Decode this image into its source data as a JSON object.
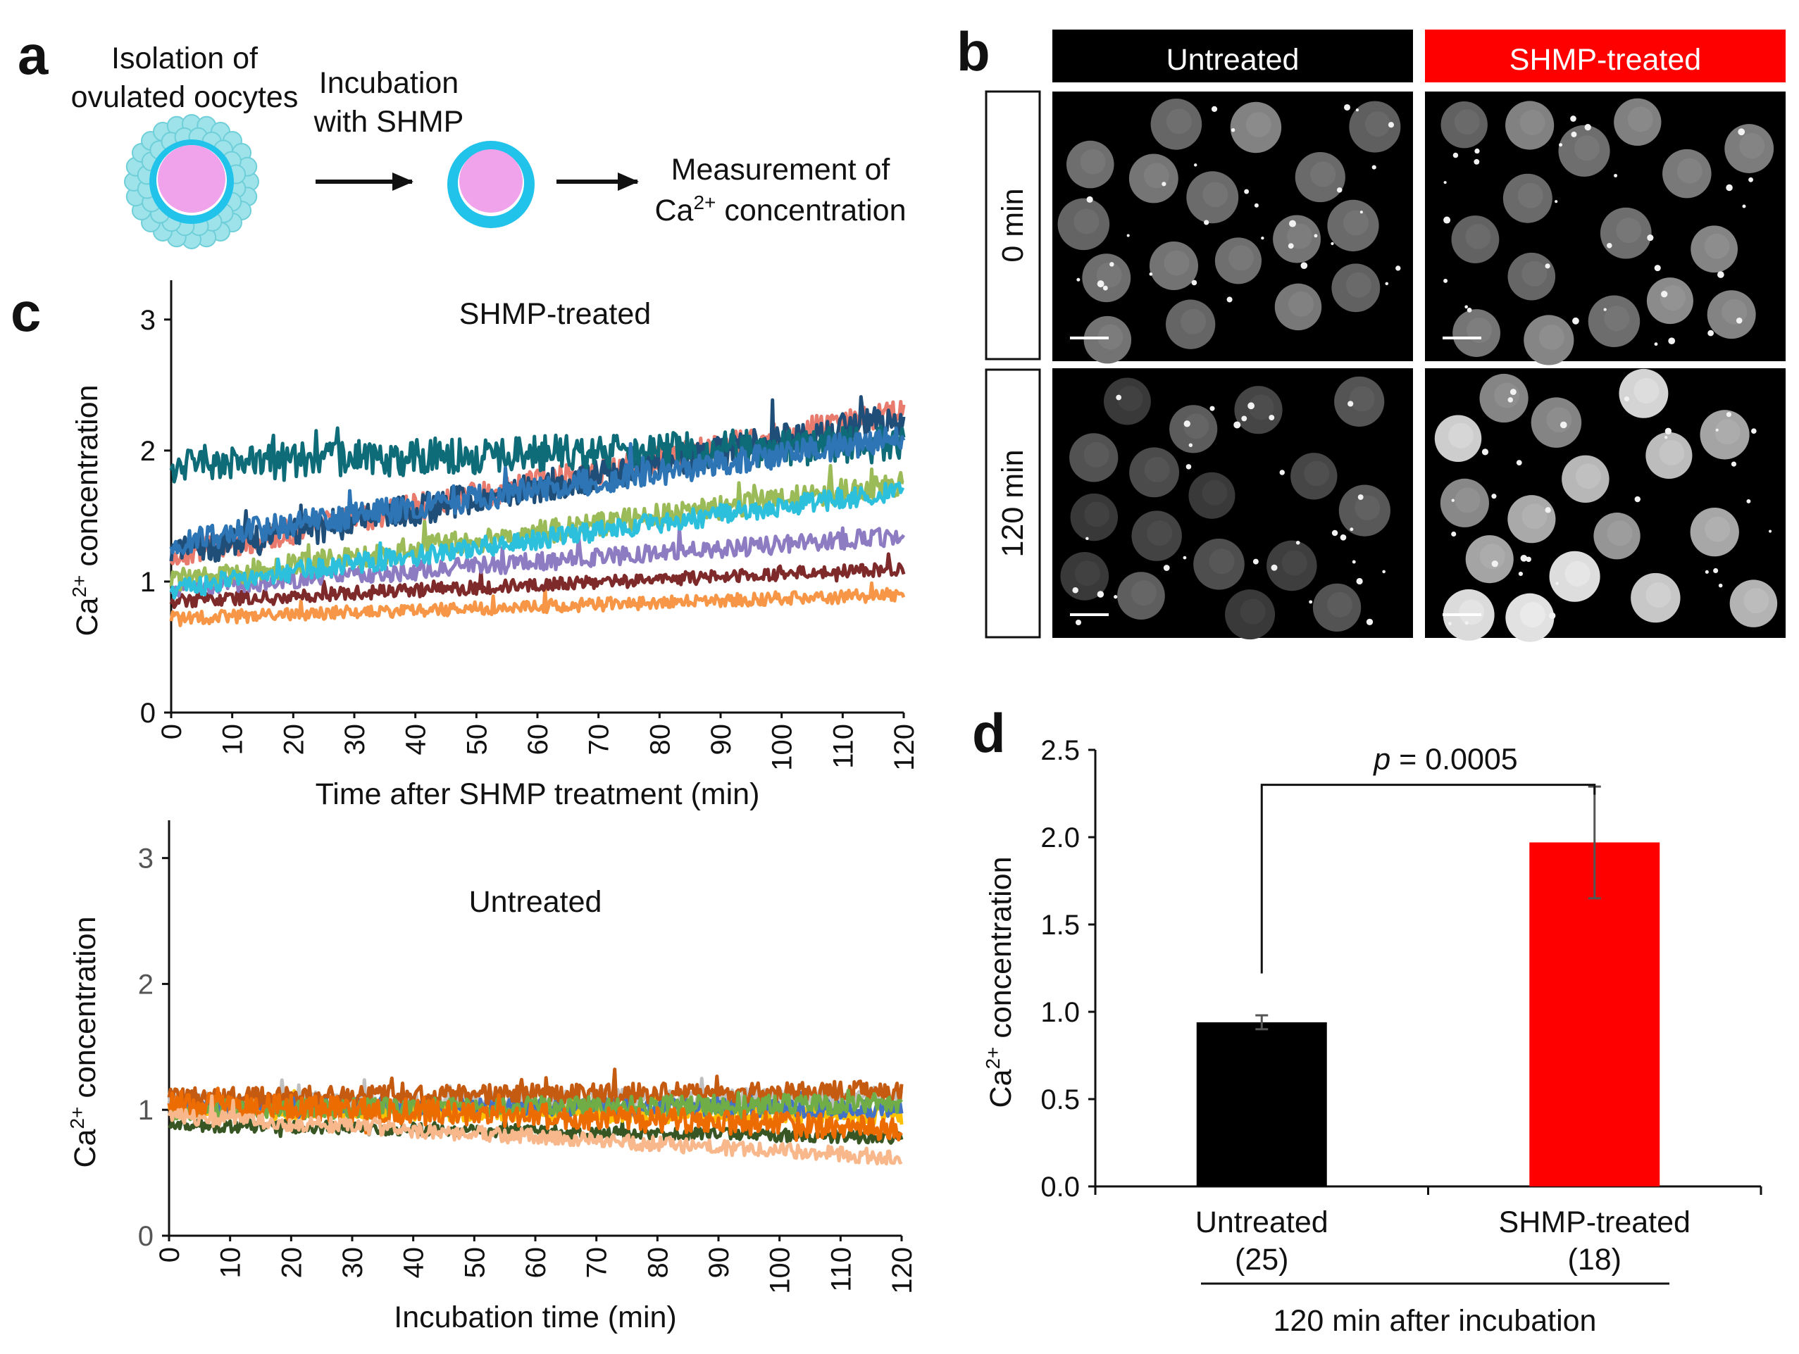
{
  "panel_labels": {
    "a": "a",
    "b": "b",
    "c": "c",
    "d": "d"
  },
  "panel_a": {
    "step1_line1": "Isolation of",
    "step1_line2": "ovulated oocytes",
    "step2_line1": "Incubation",
    "step2_line2": "with SHMP",
    "step3_line1": "Measurement of",
    "step3_line2_prefix": "Ca",
    "step3_line2_sup": "2+",
    "step3_line2_suffix": " concentration",
    "colors": {
      "cumulus": "#9fe3ea",
      "zona": "#22c3ea",
      "oocyte": "#f0a2ea"
    }
  },
  "panel_b": {
    "col_untreated": "Untreated",
    "col_shmp": "SHMP-treated",
    "row_0": "0 min",
    "row_120": "120 min",
    "colors": {
      "untreated_header": "#000000",
      "shmp_header": "#ff0000"
    }
  },
  "chart_data": [
    {
      "id": "c-top",
      "type": "line",
      "title": "SHMP-treated",
      "xlabel": "Time after SHMP treatment (min)",
      "ylabel_prefix": "Ca",
      "ylabel_sup": "2+",
      "ylabel_suffix": " concentration",
      "xlim": [
        0,
        120
      ],
      "ylim": [
        0,
        3.3
      ],
      "xticks": [
        0,
        10,
        20,
        30,
        40,
        50,
        60,
        70,
        80,
        90,
        100,
        110,
        120
      ],
      "yticks": [
        0,
        1,
        2,
        3
      ],
      "series": [
        {
          "name": "trace-1",
          "color": "#f79646",
          "start": 0.72,
          "end": 0.9,
          "noise": 0.05
        },
        {
          "name": "trace-2",
          "color": "#7f2a2a",
          "start": 0.85,
          "end": 1.1,
          "noise": 0.05
        },
        {
          "name": "trace-3",
          "color": "#8e7cc3",
          "start": 0.95,
          "end": 1.35,
          "noise": 0.07
        },
        {
          "name": "trace-4",
          "color": "#9bbb59",
          "start": 1.0,
          "end": 1.75,
          "noise": 0.09
        },
        {
          "name": "trace-5",
          "color": "#2cc0dc",
          "start": 0.95,
          "end": 1.7,
          "noise": 0.08
        },
        {
          "name": "trace-6",
          "color": "#e87b6e",
          "start": 1.2,
          "end": 2.3,
          "noise": 0.1
        },
        {
          "name": "trace-7",
          "color": "#1f4e79",
          "start": 1.2,
          "end": 2.25,
          "noise": 0.12
        },
        {
          "name": "trace-8",
          "color": "#0e6b78",
          "start": 1.9,
          "end": 2.05,
          "noise": 0.14
        },
        {
          "name": "trace-9",
          "color": "#2e75b6",
          "start": 1.3,
          "end": 2.1,
          "noise": 0.1
        }
      ]
    },
    {
      "id": "c-bottom",
      "type": "line",
      "title": "Untreated",
      "xlabel": "Incubation time (min)",
      "ylabel_prefix": "Ca",
      "ylabel_sup": "2+",
      "ylabel_suffix": " concentration",
      "xlim": [
        0,
        120
      ],
      "ylim": [
        0,
        3.3
      ],
      "xticks": [
        0,
        10,
        20,
        30,
        40,
        50,
        60,
        70,
        80,
        90,
        100,
        110,
        120
      ],
      "yticks": [
        0,
        1,
        2,
        3
      ],
      "series": [
        {
          "name": "trace-1",
          "color": "#375623",
          "start": 0.88,
          "end": 0.78,
          "noise": 0.05
        },
        {
          "name": "trace-2",
          "color": "#bfbfbf",
          "start": 1.05,
          "end": 1.1,
          "noise": 0.08
        },
        {
          "name": "trace-3",
          "color": "#ffc000",
          "start": 1.0,
          "end": 0.95,
          "noise": 0.07
        },
        {
          "name": "trace-4",
          "color": "#4472c4",
          "start": 1.05,
          "end": 1.0,
          "noise": 0.07
        },
        {
          "name": "trace-5",
          "color": "#c55a11",
          "start": 1.1,
          "end": 1.15,
          "noise": 0.08
        },
        {
          "name": "trace-6",
          "color": "#70ad47",
          "start": 1.0,
          "end": 1.05,
          "noise": 0.08
        },
        {
          "name": "trace-7",
          "color": "#ed6c02",
          "start": 1.05,
          "end": 0.85,
          "noise": 0.1
        },
        {
          "name": "trace-8",
          "color": "#f8b88b",
          "start": 0.95,
          "end": 0.62,
          "noise": 0.06
        }
      ]
    },
    {
      "id": "d",
      "type": "bar",
      "ylabel_prefix": "Ca",
      "ylabel_sup": "2+",
      "ylabel_suffix": " concentration",
      "ylim": [
        0,
        2.5
      ],
      "yticks": [
        "0.0",
        "0.5",
        "1.0",
        "1.5",
        "2.0",
        "2.5"
      ],
      "categories": [
        "Untreated",
        "SHMP-treated"
      ],
      "n_labels": [
        "(25)",
        "(18)"
      ],
      "values": [
        0.94,
        1.97
      ],
      "errors": [
        0.04,
        0.32
      ],
      "colors": [
        "#000000",
        "#ff0000"
      ],
      "group_label": "120 min after incubation",
      "p_prefix": "p",
      "p_text": " = 0.0005"
    }
  ]
}
